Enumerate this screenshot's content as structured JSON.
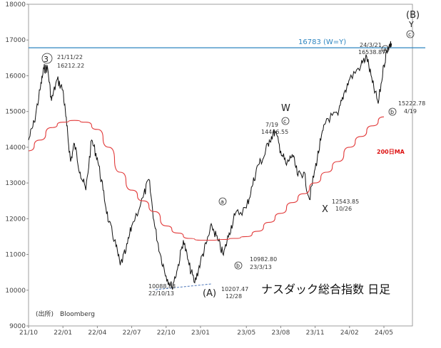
{
  "chart_data": {
    "type": "line",
    "title": "ナスダック総合指数 日足",
    "source": "(出所)　Bloomberg",
    "ylim": [
      9000,
      18000
    ],
    "yticks": [
      "9000",
      "10000",
      "11000",
      "12000",
      "13000",
      "14000",
      "15000",
      "16000",
      "17000",
      "18000"
    ],
    "xticks": [
      "21/10",
      "22/01",
      "22/04",
      "22/07",
      "22/10",
      "23/01",
      "23/05",
      "23/08",
      "23/11",
      "24/02",
      "24/05"
    ],
    "hline": {
      "value": 16783,
      "label": "16783 (W=Y)",
      "color": "#2e86c1"
    },
    "ma_label": "200日MA",
    "colors": {
      "price": "#111111",
      "ma": "#e23a3a",
      "hline": "#2e86c1",
      "text_red": "#d11"
    },
    "series": [
      {
        "type": "daily",
        "points": [
          [
            "21/10",
            14200
          ],
          [
            "21/10",
            14700
          ],
          [
            "21/11",
            15600
          ],
          [
            "21/11",
            16200
          ],
          [
            "21/11",
            16212
          ],
          [
            "21/12",
            15300
          ],
          [
            "21/12",
            15900
          ],
          [
            "22/01",
            15600
          ],
          [
            "22/01",
            14600
          ],
          [
            "22/01",
            13600
          ],
          [
            "22/02",
            14100
          ],
          [
            "22/02",
            13300
          ],
          [
            "22/03",
            12800
          ],
          [
            "22/03",
            14200
          ],
          [
            "22/04",
            13700
          ],
          [
            "22/04",
            12800
          ],
          [
            "22/05",
            11900
          ],
          [
            "22/05",
            11400
          ],
          [
            "22/06",
            10700
          ],
          [
            "22/06",
            11100
          ],
          [
            "22/07",
            11800
          ],
          [
            "22/08",
            12600
          ],
          [
            "22/08",
            13100
          ],
          [
            "22/09",
            11800
          ],
          [
            "22/09",
            11000
          ],
          [
            "22/10",
            10400
          ],
          [
            "22/10",
            10088
          ],
          [
            "22/11",
            10600
          ],
          [
            "22/11",
            11400
          ],
          [
            "22/12",
            10700
          ],
          [
            "22/12",
            10207
          ],
          [
            "23/01",
            10800
          ],
          [
            "23/01",
            11300
          ],
          [
            "23/02",
            11800
          ],
          [
            "23/02",
            11400
          ],
          [
            "23/03",
            10982
          ],
          [
            "23/03",
            11600
          ],
          [
            "23/04",
            12100
          ],
          [
            "23/05",
            12300
          ],
          [
            "23/05",
            12900
          ],
          [
            "23/06",
            13500
          ],
          [
            "23/06",
            13700
          ],
          [
            "23/07",
            14200
          ],
          [
            "23/07",
            14446
          ],
          [
            "23/08",
            13900
          ],
          [
            "23/08",
            13500
          ],
          [
            "23/09",
            13800
          ],
          [
            "23/09",
            13200
          ],
          [
            "23/10",
            13300
          ],
          [
            "23/10",
            12543
          ],
          [
            "23/11",
            13400
          ],
          [
            "23/11",
            14200
          ],
          [
            "23/12",
            14800
          ],
          [
            "24/01",
            14900
          ],
          [
            "24/01",
            15500
          ],
          [
            "24/02",
            15900
          ],
          [
            "24/03",
            16300
          ],
          [
            "24/03",
            16538
          ],
          [
            "24/04",
            15800
          ],
          [
            "24/04",
            15222
          ],
          [
            "24/05",
            16300
          ],
          [
            "24/05",
            16800
          ],
          [
            "24/05",
            16900
          ]
        ]
      },
      {
        "name": "200日MA",
        "type": "ma",
        "points": [
          [
            "21/10",
            13900
          ],
          [
            "21/11",
            14200
          ],
          [
            "21/12",
            14550
          ],
          [
            "22/01",
            14700
          ],
          [
            "22/02",
            14750
          ],
          [
            "22/03",
            14700
          ],
          [
            "22/04",
            14500
          ],
          [
            "22/05",
            14000
          ],
          [
            "22/06",
            13300
          ],
          [
            "22/07",
            12800
          ],
          [
            "22/08",
            12500
          ],
          [
            "22/09",
            12200
          ],
          [
            "22/10",
            11800
          ],
          [
            "22/11",
            11600
          ],
          [
            "22/12",
            11450
          ],
          [
            "23/01",
            11400
          ],
          [
            "23/02",
            11400
          ],
          [
            "23/03",
            11420
          ],
          [
            "23/04",
            11450
          ],
          [
            "23/05",
            11500
          ],
          [
            "23/06",
            11650
          ],
          [
            "23/07",
            11900
          ],
          [
            "23/08",
            12150
          ],
          [
            "23/09",
            12450
          ],
          [
            "23/10",
            12700
          ],
          [
            "23/11",
            13000
          ],
          [
            "23/12",
            13300
          ],
          [
            "24/01",
            13600
          ],
          [
            "24/02",
            14000
          ],
          [
            "24/03",
            14300
          ],
          [
            "24/04",
            14600
          ],
          [
            "24/05",
            14850
          ]
        ]
      }
    ],
    "annotations": {
      "peak3": {
        "mark": "③",
        "date": "21/11/22",
        "value": "16212.22"
      },
      "W": {
        "mark": "W",
        "circle": "ⓒ",
        "date": "7/19",
        "value": "14446.55"
      },
      "X": {
        "mark": "X",
        "value": "12543.85",
        "date": "10/26"
      },
      "A": {
        "mark": "(A)",
        "date1": "10088.83",
        "date1b": "22/10/13",
        "value2": "10207.47",
        "date2": "12/28"
      },
      "b1": {
        "circle": "ⓑ",
        "value": "10982.80",
        "date": "23/3/13"
      },
      "a1": {
        "circle": "ⓐ"
      },
      "e2": {
        "circle": "ⓐ",
        "date": "24/3/21",
        "value": "16538.87"
      },
      "b2": {
        "circle": "ⓑ",
        "value": "15222.78",
        "date": "4/19"
      },
      "c2": {
        "circle": "ⓒ"
      },
      "B": {
        "mark": "(B)",
        "sub": "Y"
      }
    }
  }
}
